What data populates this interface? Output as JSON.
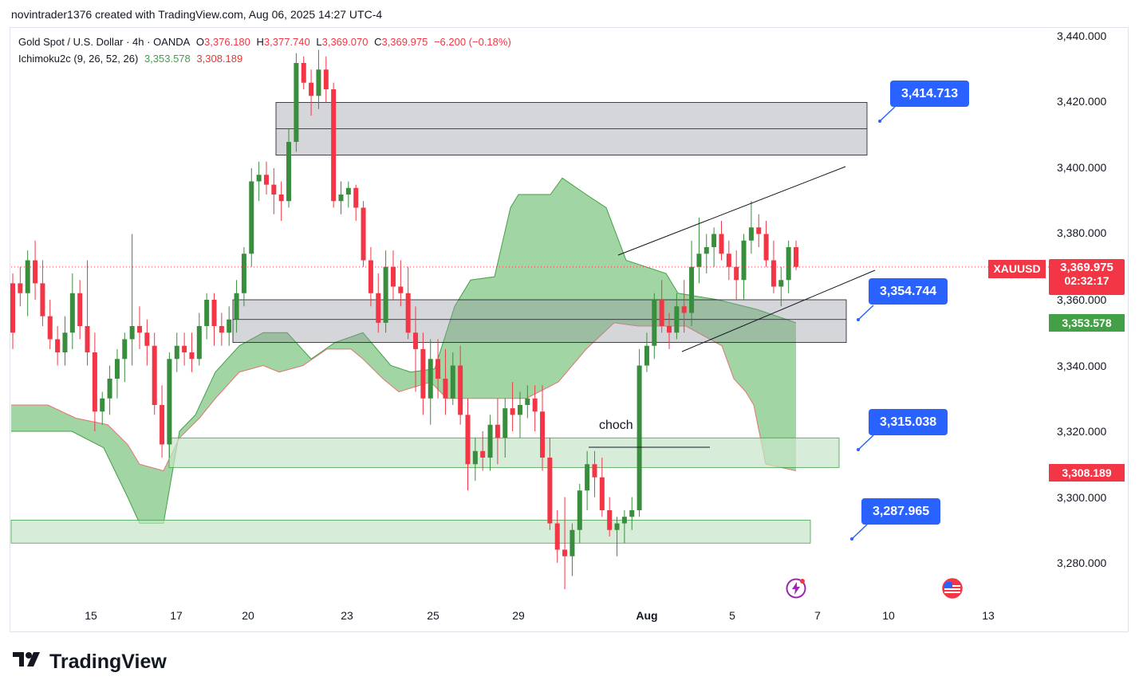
{
  "header": {
    "text": "novintrader1376 created with TradingView.com, Aug 06, 2025 14:27 UTC-4"
  },
  "legend": {
    "symbol": "Gold Spot / U.S. Dollar · 4h · OANDA",
    "o_label": "O",
    "o_val": "3,376.180",
    "h_label": "H",
    "h_val": "3,377.740",
    "l_label": "L",
    "l_val": "3,369.070",
    "c_label": "C",
    "c_val": "3,369.975",
    "change": "−6.200 (−0.18%)",
    "indicator": "Ichimoku2c (9, 26, 52, 26)",
    "ind_val1": "3,353.578",
    "ind_val2": "3,308.189"
  },
  "yaxis": [
    "3,440.000",
    "3,420.000",
    "3,400.000",
    "3,380.000",
    "3,360.000",
    "3,340.000",
    "3,320.000",
    "3,300.000",
    "3,280.000"
  ],
  "xaxis": [
    "15",
    "17",
    "20",
    "23",
    "25",
    "29",
    "Aug",
    "5",
    "7",
    "10",
    "13"
  ],
  "price_tags": {
    "symbol": "XAUUSD",
    "last": "3,369.975",
    "countdown": "02:32:17",
    "span_a": "3,353.578",
    "span_b": "3,308.189"
  },
  "callouts": [
    "3,414.713",
    "3,354.744",
    "3,315.038",
    "3,287.965"
  ],
  "annotation": "choch",
  "brand": "TradingView",
  "colors": {
    "up": "#388e3c",
    "down": "#f23645",
    "cloud": "#81c784",
    "callout": "#2962ff"
  },
  "chart_data": {
    "type": "candlestick",
    "symbol": "XAUUSD",
    "timeframe": "4h",
    "ylim": [
      3270,
      3444
    ],
    "candles": [
      [
        3365,
        3368,
        3345,
        3350
      ],
      [
        3365,
        3370,
        3358,
        3362
      ],
      [
        3362,
        3375,
        3355,
        3372
      ],
      [
        3372,
        3378,
        3360,
        3365
      ],
      [
        3365,
        3372,
        3352,
        3355
      ],
      [
        3355,
        3360,
        3345,
        3348
      ],
      [
        3348,
        3352,
        3340,
        3344
      ],
      [
        3344,
        3355,
        3340,
        3350
      ],
      [
        3350,
        3368,
        3345,
        3362
      ],
      [
        3362,
        3366,
        3348,
        3352
      ],
      [
        3352,
        3372,
        3340,
        3344
      ],
      [
        3344,
        3350,
        3320,
        3326
      ],
      [
        3326,
        3332,
        3322,
        3330
      ],
      [
        3330,
        3340,
        3325,
        3336
      ],
      [
        3336,
        3345,
        3330,
        3342
      ],
      [
        3342,
        3350,
        3335,
        3348
      ],
      [
        3348,
        3380,
        3340,
        3352
      ],
      [
        3352,
        3358,
        3345,
        3350
      ],
      [
        3350,
        3354,
        3340,
        3346
      ],
      [
        3346,
        3350,
        3325,
        3328
      ],
      [
        3328,
        3334,
        3312,
        3316
      ],
      [
        3316,
        3344,
        3312,
        3342
      ],
      [
        3342,
        3350,
        3338,
        3346
      ],
      [
        3346,
        3350,
        3340,
        3344
      ],
      [
        3344,
        3350,
        3338,
        3342
      ],
      [
        3342,
        3356,
        3340,
        3352
      ],
      [
        3352,
        3362,
        3348,
        3360
      ],
      [
        3360,
        3362,
        3346,
        3352
      ],
      [
        3352,
        3356,
        3346,
        3350
      ],
      [
        3350,
        3358,
        3346,
        3354
      ],
      [
        3354,
        3366,
        3350,
        3362
      ],
      [
        3362,
        3376,
        3358,
        3374
      ],
      [
        3374,
        3400,
        3370,
        3396
      ],
      [
        3396,
        3402,
        3390,
        3398
      ],
      [
        3398,
        3402,
        3392,
        3395
      ],
      [
        3395,
        3400,
        3386,
        3392
      ],
      [
        3392,
        3396,
        3384,
        3390
      ],
      [
        3390,
        3412,
        3388,
        3408
      ],
      [
        3408,
        3435,
        3405,
        3432
      ],
      [
        3432,
        3434,
        3424,
        3426
      ],
      [
        3426,
        3430,
        3416,
        3422
      ],
      [
        3422,
        3436,
        3418,
        3430
      ],
      [
        3430,
        3434,
        3420,
        3424
      ],
      [
        3424,
        3426,
        3388,
        3390
      ],
      [
        3390,
        3396,
        3386,
        3392
      ],
      [
        3392,
        3396,
        3388,
        3394
      ],
      [
        3394,
        3395,
        3384,
        3388
      ],
      [
        3388,
        3390,
        3370,
        3372
      ],
      [
        3372,
        3376,
        3358,
        3362
      ],
      [
        3362,
        3368,
        3350,
        3353
      ],
      [
        3353,
        3375,
        3350,
        3370
      ],
      [
        3370,
        3375,
        3360,
        3364
      ],
      [
        3364,
        3372,
        3358,
        3362
      ],
      [
        3362,
        3370,
        3348,
        3350
      ],
      [
        3350,
        3358,
        3332,
        3345
      ],
      [
        3345,
        3350,
        3325,
        3330
      ],
      [
        3330,
        3348,
        3322,
        3342
      ],
      [
        3342,
        3348,
        3330,
        3336
      ],
      [
        3336,
        3345,
        3325,
        3330
      ],
      [
        3330,
        3344,
        3328,
        3340
      ],
      [
        3340,
        3346,
        3322,
        3325
      ],
      [
        3325,
        3330,
        3302,
        3310
      ],
      [
        3310,
        3318,
        3305,
        3314
      ],
      [
        3314,
        3320,
        3308,
        3312
      ],
      [
        3312,
        3325,
        3308,
        3322
      ],
      [
        3322,
        3330,
        3310,
        3318
      ],
      [
        3318,
        3330,
        3312,
        3327
      ],
      [
        3327,
        3335,
        3320,
        3325
      ],
      [
        3325,
        3332,
        3318,
        3328
      ],
      [
        3328,
        3334,
        3324,
        3330
      ],
      [
        3330,
        3334,
        3320,
        3326
      ],
      [
        3326,
        3334,
        3308,
        3312
      ],
      [
        3312,
        3318,
        3290,
        3292
      ],
      [
        3292,
        3296,
        3280,
        3284
      ],
      [
        3284,
        3300,
        3272,
        3282
      ],
      [
        3282,
        3292,
        3276,
        3290
      ],
      [
        3290,
        3304,
        3286,
        3302
      ],
      [
        3302,
        3314,
        3296,
        3310
      ],
      [
        3310,
        3314,
        3300,
        3306
      ],
      [
        3306,
        3312,
        3294,
        3296
      ],
      [
        3296,
        3300,
        3288,
        3290
      ],
      [
        3290,
        3294,
        3282,
        3292
      ],
      [
        3292,
        3296,
        3286,
        3294
      ],
      [
        3294,
        3300,
        3290,
        3296
      ],
      [
        3296,
        3345,
        3294,
        3340
      ],
      [
        3340,
        3350,
        3338,
        3346
      ],
      [
        3346,
        3362,
        3342,
        3360
      ],
      [
        3360,
        3366,
        3350,
        3352
      ],
      [
        3352,
        3356,
        3345,
        3350
      ],
      [
        3350,
        3362,
        3348,
        3358
      ],
      [
        3358,
        3366,
        3350,
        3356
      ],
      [
        3356,
        3378,
        3352,
        3370
      ],
      [
        3370,
        3385,
        3365,
        3374
      ],
      [
        3374,
        3380,
        3368,
        3376
      ],
      [
        3376,
        3382,
        3370,
        3380
      ],
      [
        3380,
        3384,
        3372,
        3374
      ],
      [
        3374,
        3378,
        3366,
        3370
      ],
      [
        3370,
        3375,
        3360,
        3366
      ],
      [
        3366,
        3380,
        3360,
        3378
      ],
      [
        3378,
        3390,
        3374,
        3382
      ],
      [
        3382,
        3386,
        3376,
        3380
      ],
      [
        3380,
        3384,
        3370,
        3372
      ],
      [
        3372,
        3378,
        3362,
        3364
      ],
      [
        3364,
        3370,
        3358,
        3366
      ],
      [
        3366,
        3378,
        3362,
        3376
      ],
      [
        3376,
        3378,
        3369,
        3370
      ]
    ],
    "drawn_levels": [
      3414.713,
      3354.744,
      3315.038,
      3287.965
    ],
    "zones": [
      {
        "from": 3404,
        "to": 3420,
        "color": "gray"
      },
      {
        "from": 3347,
        "to": 3360,
        "color": "gray"
      },
      {
        "from": 3309,
        "to": 3318,
        "color": "green"
      },
      {
        "from": 3286,
        "to": 3293,
        "color": "green"
      }
    ]
  }
}
